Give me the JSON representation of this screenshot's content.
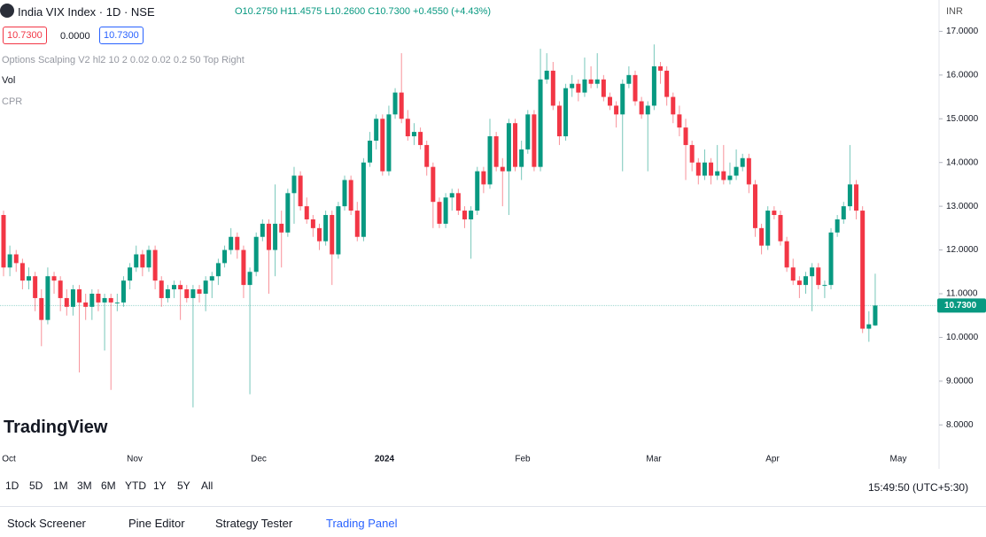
{
  "header": {
    "symbol": "India VIX Index · 1D · NSE",
    "ohlc": "O10.2750 H11.4575 L10.2600 C10.7300 +0.4550 (+4.43%)",
    "currency": "INR",
    "boxes": [
      "10.7300",
      "0.0000",
      "10.7300"
    ],
    "indicators": [
      "Options Scalping V2 hl2 10 2 0.02 0.02 0.2 50 Top Right",
      "Vol",
      "CPR"
    ]
  },
  "logo": "TradingView",
  "chart_data": {
    "type": "candlestick",
    "up_color": "#089981",
    "down_color": "#f23645",
    "ylim": [
      7.5,
      17.15
    ],
    "yticks": [
      {
        "value": 8,
        "label": "8.0000"
      },
      {
        "value": 9,
        "label": "9.0000"
      },
      {
        "value": 10,
        "label": "10.0000"
      },
      {
        "value": 11,
        "label": "11.0000"
      },
      {
        "value": 12,
        "label": "12.0000"
      },
      {
        "value": 13,
        "label": "13.0000"
      },
      {
        "value": 14,
        "label": "14.0000"
      },
      {
        "value": 15,
        "label": "15.0000"
      },
      {
        "value": 16,
        "label": "16.0000"
      },
      {
        "value": 17,
        "label": "17.0000"
      }
    ],
    "last_price": {
      "value": 10.73,
      "label": "10.7300"
    },
    "time_labels": [
      "Oct",
      "Nov",
      "Dec",
      "2024",
      "Feb",
      "Mar",
      "Apr",
      "May"
    ],
    "candles": [
      [
        12.8,
        12.9,
        11.4,
        11.6
      ],
      [
        11.6,
        12.1,
        11.4,
        11.9
      ],
      [
        11.9,
        12.0,
        11.5,
        11.7
      ],
      [
        11.7,
        11.8,
        11.1,
        11.3
      ],
      [
        11.3,
        11.6,
        11.1,
        11.4
      ],
      [
        11.4,
        11.5,
        10.6,
        10.9
      ],
      [
        10.9,
        11.1,
        9.8,
        10.4
      ],
      [
        10.4,
        11.6,
        10.3,
        11.4
      ],
      [
        11.4,
        11.5,
        11.0,
        11.3
      ],
      [
        11.3,
        11.4,
        10.6,
        10.9
      ],
      [
        10.9,
        11.1,
        10.5,
        10.7
      ],
      [
        10.7,
        11.2,
        10.5,
        11.1
      ],
      [
        11.1,
        11.2,
        9.2,
        10.8
      ],
      [
        10.8,
        11.0,
        10.4,
        10.7
      ],
      [
        10.7,
        11.1,
        10.4,
        11.0
      ],
      [
        11.0,
        11.1,
        10.6,
        10.8
      ],
      [
        10.8,
        11.0,
        9.7,
        10.9
      ],
      [
        10.9,
        11.0,
        8.8,
        10.8
      ],
      [
        10.8,
        11.0,
        10.6,
        10.8
      ],
      [
        10.8,
        11.4,
        10.7,
        11.3
      ],
      [
        11.3,
        11.7,
        11.1,
        11.6
      ],
      [
        11.6,
        12.1,
        11.5,
        11.9
      ],
      [
        11.9,
        12.0,
        11.4,
        11.6
      ],
      [
        11.6,
        12.1,
        11.5,
        12.0
      ],
      [
        12.0,
        12.1,
        11.1,
        11.3
      ],
      [
        11.3,
        11.4,
        10.7,
        10.9
      ],
      [
        10.9,
        11.2,
        10.8,
        11.1
      ],
      [
        11.1,
        11.3,
        10.9,
        11.2
      ],
      [
        11.2,
        11.3,
        10.4,
        11.1
      ],
      [
        11.1,
        11.2,
        10.8,
        10.9
      ],
      [
        10.9,
        11.2,
        8.4,
        11.1
      ],
      [
        11.1,
        11.2,
        10.8,
        11.0
      ],
      [
        11.0,
        11.4,
        10.6,
        11.3
      ],
      [
        11.3,
        11.5,
        10.9,
        11.4
      ],
      [
        11.4,
        11.8,
        11.2,
        11.7
      ],
      [
        11.7,
        12.1,
        11.6,
        12.0
      ],
      [
        12.0,
        12.5,
        11.9,
        12.3
      ],
      [
        12.3,
        12.4,
        11.8,
        12.0
      ],
      [
        12.0,
        12.1,
        10.9,
        11.2
      ],
      [
        11.2,
        11.6,
        8.7,
        11.5
      ],
      [
        11.5,
        12.4,
        11.4,
        12.3
      ],
      [
        12.3,
        12.7,
        12.2,
        12.6
      ],
      [
        12.6,
        12.7,
        11.0,
        12.0
      ],
      [
        12.0,
        13.5,
        11.4,
        12.6
      ],
      [
        12.6,
        12.9,
        11.6,
        12.4
      ],
      [
        12.4,
        13.4,
        12.3,
        13.3
      ],
      [
        13.3,
        13.9,
        12.6,
        13.7
      ],
      [
        13.7,
        13.8,
        12.9,
        13.0
      ],
      [
        13.0,
        13.2,
        12.6,
        12.7
      ],
      [
        12.7,
        12.8,
        12.3,
        12.5
      ],
      [
        12.5,
        12.6,
        12.0,
        12.2
      ],
      [
        12.2,
        12.9,
        12.1,
        12.8
      ],
      [
        12.8,
        12.9,
        11.2,
        11.9
      ],
      [
        11.9,
        13.1,
        11.8,
        13.0
      ],
      [
        13.0,
        13.7,
        12.9,
        13.6
      ],
      [
        13.6,
        13.7,
        12.8,
        12.9
      ],
      [
        12.9,
        13.1,
        12.2,
        12.3
      ],
      [
        12.3,
        14.1,
        12.2,
        14.0
      ],
      [
        14.0,
        14.7,
        13.9,
        14.5
      ],
      [
        14.5,
        15.1,
        14.3,
        15.0
      ],
      [
        15.0,
        15.1,
        13.7,
        13.8
      ],
      [
        13.8,
        15.3,
        13.7,
        15.1
      ],
      [
        15.1,
        15.7,
        15.0,
        15.6
      ],
      [
        15.6,
        16.5,
        14.9,
        15.0
      ],
      [
        15.0,
        15.2,
        14.5,
        14.6
      ],
      [
        14.6,
        14.9,
        14.4,
        14.7
      ],
      [
        14.7,
        14.8,
        14.3,
        14.4
      ],
      [
        14.4,
        14.5,
        13.7,
        13.9
      ],
      [
        13.9,
        14.0,
        12.5,
        13.1
      ],
      [
        13.1,
        13.2,
        12.5,
        12.6
      ],
      [
        12.6,
        13.3,
        12.5,
        13.2
      ],
      [
        13.2,
        13.4,
        12.9,
        13.3
      ],
      [
        13.3,
        13.4,
        12.8,
        12.9
      ],
      [
        12.9,
        13.0,
        12.5,
        12.7
      ],
      [
        12.7,
        13.0,
        11.8,
        12.9
      ],
      [
        12.9,
        13.9,
        12.8,
        13.8
      ],
      [
        13.8,
        13.9,
        13.3,
        13.5
      ],
      [
        13.5,
        15.0,
        13.4,
        14.6
      ],
      [
        14.6,
        14.7,
        13.8,
        13.9
      ],
      [
        13.9,
        14.1,
        13.0,
        13.8
      ],
      [
        13.8,
        15.0,
        12.8,
        14.9
      ],
      [
        14.9,
        15.0,
        13.8,
        13.9
      ],
      [
        13.9,
        14.5,
        13.6,
        14.3
      ],
      [
        14.3,
        15.2,
        14.2,
        15.1
      ],
      [
        15.1,
        15.2,
        13.8,
        13.9
      ],
      [
        13.9,
        16.6,
        13.8,
        15.9
      ],
      [
        15.9,
        16.5,
        15.8,
        16.1
      ],
      [
        16.1,
        16.3,
        15.2,
        15.3
      ],
      [
        15.3,
        15.4,
        14.4,
        14.6
      ],
      [
        14.6,
        15.8,
        14.5,
        15.7
      ],
      [
        15.7,
        16.0,
        15.5,
        15.8
      ],
      [
        15.8,
        15.9,
        15.4,
        15.6
      ],
      [
        15.6,
        16.4,
        15.5,
        15.9
      ],
      [
        15.9,
        16.2,
        15.7,
        15.8
      ],
      [
        15.8,
        16.5,
        15.7,
        15.9
      ],
      [
        15.9,
        16.0,
        15.4,
        15.5
      ],
      [
        15.5,
        15.6,
        15.2,
        15.3
      ],
      [
        15.3,
        15.4,
        14.8,
        15.1
      ],
      [
        15.1,
        15.9,
        13.8,
        15.8
      ],
      [
        15.8,
        16.2,
        15.7,
        16.0
      ],
      [
        16.0,
        16.1,
        15.3,
        15.4
      ],
      [
        15.4,
        15.5,
        15.0,
        15.1
      ],
      [
        15.1,
        15.4,
        13.8,
        15.3
      ],
      [
        15.3,
        16.7,
        15.2,
        16.2
      ],
      [
        16.2,
        16.3,
        15.8,
        16.1
      ],
      [
        16.1,
        16.2,
        15.3,
        15.5
      ],
      [
        15.5,
        15.6,
        14.9,
        15.1
      ],
      [
        15.1,
        15.3,
        14.6,
        14.8
      ],
      [
        14.8,
        15.0,
        13.6,
        14.4
      ],
      [
        14.4,
        14.5,
        13.8,
        14.0
      ],
      [
        14.0,
        14.1,
        13.5,
        13.7
      ],
      [
        13.7,
        14.3,
        13.6,
        14.0
      ],
      [
        14.0,
        14.1,
        13.5,
        13.7
      ],
      [
        13.7,
        14.4,
        13.6,
        13.8
      ],
      [
        13.8,
        14.4,
        13.5,
        13.6
      ],
      [
        13.6,
        14.0,
        13.5,
        13.7
      ],
      [
        13.7,
        14.3,
        13.6,
        13.9
      ],
      [
        13.9,
        14.2,
        13.8,
        14.1
      ],
      [
        14.1,
        14.2,
        13.3,
        13.5
      ],
      [
        13.5,
        13.6,
        12.3,
        12.5
      ],
      [
        12.5,
        12.6,
        11.9,
        12.1
      ],
      [
        12.1,
        13.0,
        12.0,
        12.9
      ],
      [
        12.9,
        13.0,
        12.7,
        12.8
      ],
      [
        12.8,
        12.9,
        12.1,
        12.2
      ],
      [
        12.2,
        12.3,
        11.5,
        11.6
      ],
      [
        11.6,
        11.8,
        11.2,
        11.3
      ],
      [
        11.3,
        11.4,
        10.9,
        11.2
      ],
      [
        11.2,
        11.5,
        11.0,
        11.4
      ],
      [
        11.4,
        11.7,
        10.6,
        11.6
      ],
      [
        11.6,
        11.7,
        11.1,
        11.2
      ],
      [
        11.2,
        11.3,
        10.9,
        11.2
      ],
      [
        11.2,
        12.5,
        11.1,
        12.4
      ],
      [
        12.4,
        12.8,
        12.3,
        12.7
      ],
      [
        12.7,
        13.1,
        12.6,
        13.0
      ],
      [
        13.0,
        14.4,
        12.9,
        13.5
      ],
      [
        13.5,
        13.6,
        12.7,
        12.9
      ],
      [
        12.9,
        13.0,
        10.1,
        10.2
      ],
      [
        10.2,
        10.6,
        9.9,
        10.3
      ],
      [
        10.275,
        11.4575,
        10.26,
        10.73
      ]
    ]
  },
  "toolbar": {
    "ranges": [
      "1D",
      "5D",
      "1M",
      "3M",
      "6M",
      "YTD",
      "1Y",
      "5Y",
      "All"
    ],
    "clock": "15:49:50 (UTC+5:30)"
  },
  "tabs": [
    "Stock Screener",
    "Pine Editor",
    "Strategy Tester",
    "Trading Panel"
  ]
}
